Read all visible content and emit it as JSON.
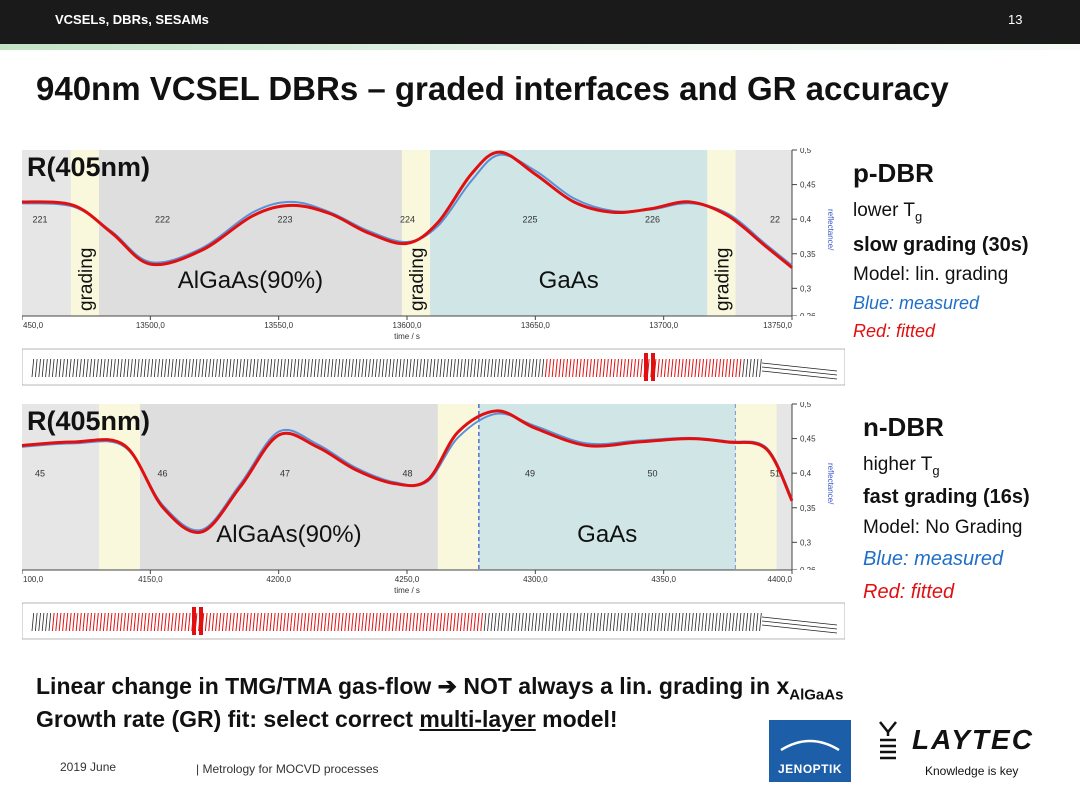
{
  "header": {
    "deck": "VCSELs, DBRs, SESAMs",
    "slide_number": "13"
  },
  "title": "940nm VCSEL DBRs – graded interfaces and GR accuracy",
  "panels": {
    "p": {
      "heading": "p-DBR",
      "temp_pre": "lower T",
      "temp_sub": "g",
      "grading": "slow grading (30s)",
      "model": "Model: lin. grading",
      "measured": "Blue: measured",
      "fitted": "Red: fitted"
    },
    "n": {
      "heading": "n-DBR",
      "temp_pre": "higher T",
      "temp_sub": "g",
      "grading": "fast grading (16s)",
      "model": "Model: No Grading",
      "measured": "Blue: measured",
      "fitted": "Red: fitted"
    }
  },
  "conclusion": {
    "line1_pre": "Linear change in TMG/TMA gas-flow ",
    "arrow": "➔",
    "line1_mid": " NOT always a lin. grading in x",
    "line1_sub": "AlGaAs",
    "line2_pre": "Growth rate (GR) fit: select correct ",
    "line2_u": "multi-layer",
    "line2_post": " model!"
  },
  "footer": {
    "date": "2019 June",
    "text": "Metrology for MOCVD processes"
  },
  "logos": {
    "jenoptik": "JENOPTIK",
    "laytec": "LAYTEC",
    "laytec_tag": "Knowledge is key"
  },
  "colors": {
    "fitted": "#e01010",
    "measured": "#5b8fd6",
    "grading_band": "#f9f8dc",
    "alga_band": "#dedede",
    "gaas_band": "#cfe5e6"
  },
  "chart_data": [
    {
      "type": "line",
      "title": "R(405nm)",
      "xlabel": "time / s",
      "ylabel": "reflectance/",
      "xlim": [
        13450,
        13750
      ],
      "ylim": [
        0.26,
        0.5
      ],
      "x_ticks": [
        "450,0",
        "13500,0",
        "13550,0",
        "13600,0",
        "13650,0",
        "13700,0",
        "13750,0"
      ],
      "y_ticks": [
        "0,5",
        "0,45",
        "0,4",
        "0,35",
        "0,3",
        "0,26"
      ],
      "layer_numbers": [
        "221",
        "222",
        "223",
        "224",
        "225",
        "226",
        "22"
      ],
      "regions": [
        {
          "label": "grading",
          "type": "grading",
          "x": [
            13469,
            13480
          ]
        },
        {
          "label": "AlGaAs(90%)",
          "type": "alga",
          "x": [
            13480,
            13598
          ]
        },
        {
          "label": "grading",
          "type": "grading",
          "x": [
            13598,
            13609
          ]
        },
        {
          "label": "GaAs",
          "type": "gaas",
          "x": [
            13609,
            13717
          ]
        },
        {
          "label": "grading",
          "type": "grading",
          "x": [
            13717,
            13728
          ]
        }
      ],
      "series": [
        {
          "name": "fitted",
          "x": [
            13450,
            13470,
            13485,
            13500,
            13520,
            13540,
            13555,
            13570,
            13585,
            13600,
            13612,
            13625,
            13636,
            13650,
            13665,
            13680,
            13695,
            13710,
            13725,
            13740,
            13750
          ],
          "y": [
            0.425,
            0.42,
            0.38,
            0.335,
            0.355,
            0.405,
            0.42,
            0.408,
            0.38,
            0.365,
            0.395,
            0.465,
            0.497,
            0.465,
            0.425,
            0.41,
            0.415,
            0.425,
            0.405,
            0.36,
            0.33
          ]
        },
        {
          "name": "measured",
          "x": [
            13450,
            13470,
            13485,
            13500,
            13520,
            13540,
            13555,
            13570,
            13585,
            13600,
            13612,
            13625,
            13636,
            13650,
            13665,
            13680,
            13695,
            13710,
            13725,
            13740,
            13750
          ],
          "y": [
            0.423,
            0.418,
            0.382,
            0.338,
            0.358,
            0.41,
            0.425,
            0.41,
            0.383,
            0.367,
            0.39,
            0.455,
            0.493,
            0.47,
            0.43,
            0.412,
            0.414,
            0.423,
            0.408,
            0.363,
            0.333
          ]
        }
      ]
    },
    {
      "type": "line",
      "title": "R(405nm)",
      "xlabel": "time / s",
      "ylabel": "reflectance/",
      "xlim": [
        4100,
        4400
      ],
      "ylim": [
        0.26,
        0.5
      ],
      "x_ticks": [
        "100,0",
        "4150,0",
        "4200,0",
        "4250,0",
        "4300,0",
        "4350,0",
        "4400,0"
      ],
      "y_ticks": [
        "0,5",
        "0,45",
        "0,4",
        "0,35",
        "0,3",
        "0,26"
      ],
      "layer_numbers": [
        "45",
        "46",
        "47",
        "48",
        "49",
        "50",
        "51"
      ],
      "regions": [
        {
          "label": "",
          "type": "grading",
          "x": [
            4130,
            4146
          ]
        },
        {
          "label": "AlGaAs(90%)",
          "type": "alga",
          "x": [
            4146,
            4262
          ]
        },
        {
          "label": "",
          "type": "grading",
          "x": [
            4262,
            4278
          ]
        },
        {
          "label": "GaAs",
          "type": "gaas",
          "x": [
            4278,
            4378
          ]
        },
        {
          "label": "",
          "type": "grading",
          "x": [
            4378,
            4394
          ]
        }
      ],
      "series": [
        {
          "name": "fitted",
          "x": [
            4100,
            4120,
            4140,
            4155,
            4170,
            4185,
            4200,
            4215,
            4230,
            4245,
            4258,
            4270,
            4285,
            4300,
            4320,
            4340,
            4360,
            4375,
            4390,
            4400
          ],
          "y": [
            0.44,
            0.445,
            0.44,
            0.35,
            0.315,
            0.38,
            0.455,
            0.438,
            0.405,
            0.385,
            0.39,
            0.46,
            0.49,
            0.465,
            0.44,
            0.445,
            0.45,
            0.445,
            0.435,
            0.36
          ]
        },
        {
          "name": "measured",
          "x": [
            4100,
            4120,
            4140,
            4155,
            4170,
            4185,
            4200,
            4215,
            4230,
            4245,
            4258,
            4270,
            4285,
            4300,
            4320,
            4340,
            4360,
            4375,
            4390,
            4400
          ],
          "y": [
            0.438,
            0.443,
            0.438,
            0.353,
            0.318,
            0.384,
            0.46,
            0.442,
            0.408,
            0.387,
            0.388,
            0.452,
            0.486,
            0.468,
            0.443,
            0.447,
            0.451,
            0.446,
            0.437,
            0.363
          ]
        }
      ]
    }
  ]
}
